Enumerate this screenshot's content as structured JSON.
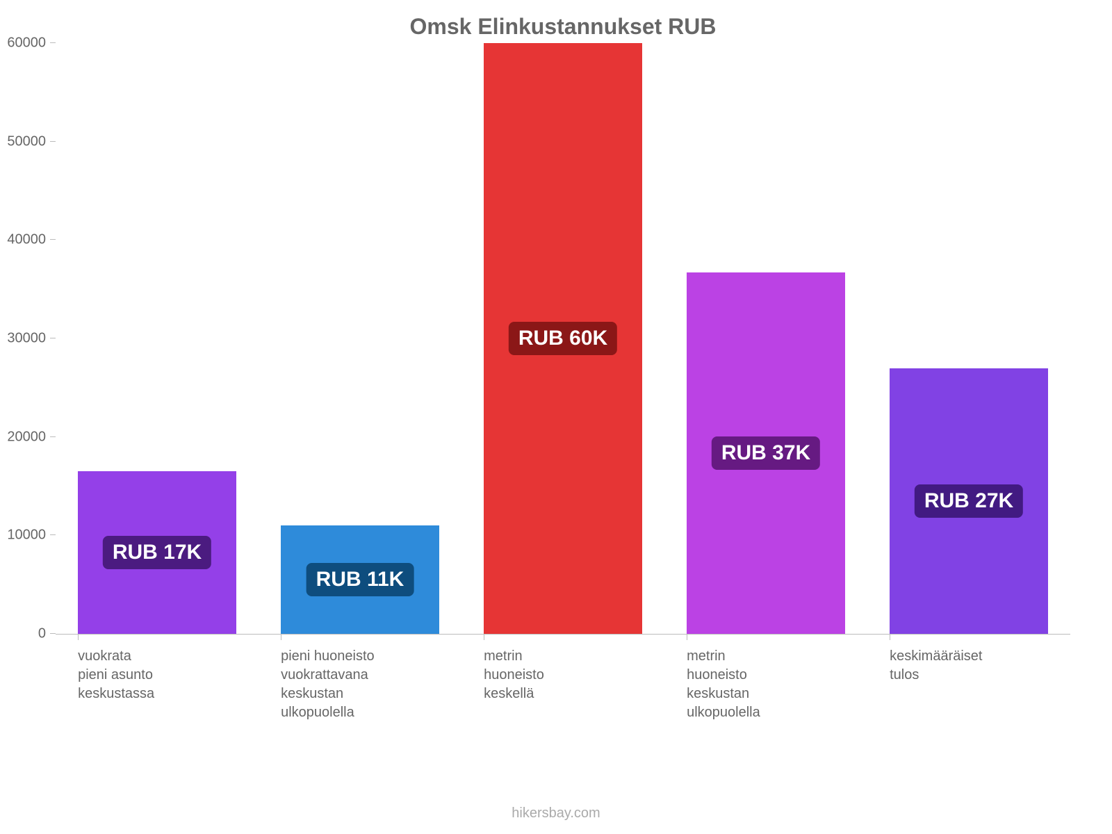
{
  "chart": {
    "type": "bar",
    "title": "Omsk Elinkustannukset RUB",
    "title_color": "#666666",
    "title_fontsize": 32,
    "background_color": "#ffffff",
    "attribution": "hikersbay.com",
    "attribution_color": "#aaaaaa",
    "axis_color": "#bbbbbb",
    "label_color": "#666666",
    "x_label_fontsize": 20,
    "y_tick_fontsize": 20,
    "value_label_fontsize": 30,
    "ylim": [
      0,
      60000
    ],
    "ytick_step": 10000,
    "yticks": [
      {
        "value": 0,
        "label": "0"
      },
      {
        "value": 10000,
        "label": "10000"
      },
      {
        "value": 20000,
        "label": "20000"
      },
      {
        "value": 30000,
        "label": "30000"
      },
      {
        "value": 40000,
        "label": "40000"
      },
      {
        "value": 50000,
        "label": "50000"
      },
      {
        "value": 60000,
        "label": "60000"
      }
    ],
    "bar_width": 0.78,
    "bars": [
      {
        "category": "vuokrata\npieni asunto\nkeskustassa",
        "value": 16500,
        "value_label": "RUB 17K",
        "fill": "#9440e8",
        "badge_bg": "#4b1b80"
      },
      {
        "category": "pieni huoneisto\nvuokrattavana\nkeskustan\nulkopuolella",
        "value": 11000,
        "value_label": "RUB 11K",
        "fill": "#2e8bda",
        "badge_bg": "#0e4d7e"
      },
      {
        "category": "metrin\nhuoneisto\nkeskellä",
        "value": 60000,
        "value_label": "RUB 60K",
        "fill": "#e63535",
        "badge_bg": "#8b1717"
      },
      {
        "category": "metrin\nhuoneisto\nkeskustan\nulkopuolella",
        "value": 36700,
        "value_label": "RUB 37K",
        "fill": "#bb42e4",
        "badge_bg": "#661a82"
      },
      {
        "category": "keskimääräiset\ntulos",
        "value": 27000,
        "value_label": "RUB 27K",
        "fill": "#8142e4",
        "badge_bg": "#421a82"
      }
    ]
  }
}
